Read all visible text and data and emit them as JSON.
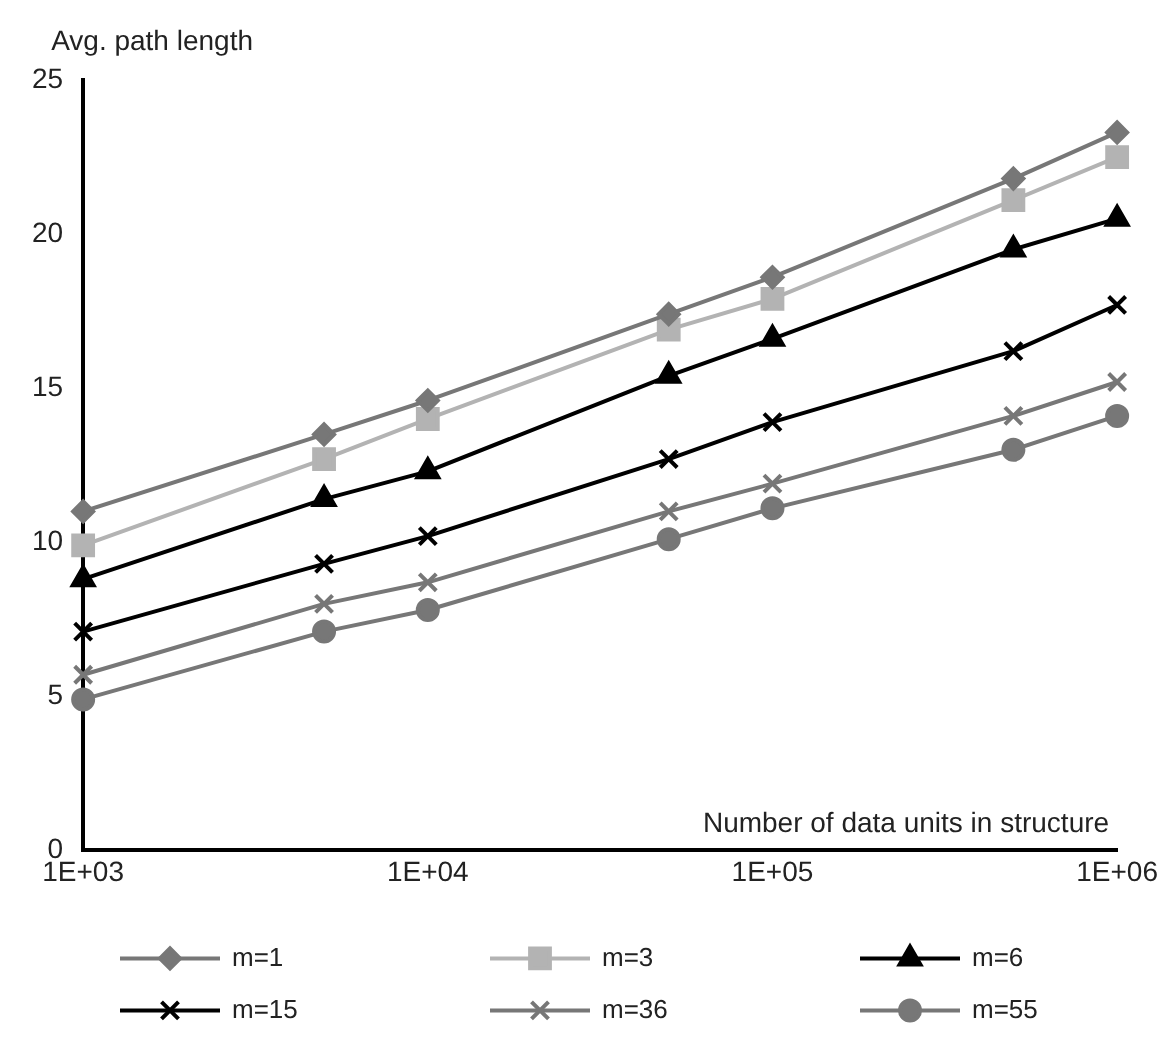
{
  "chart_data": {
    "type": "line",
    "xlabel": "Number of data units in structure",
    "ylabel": "Avg. path length",
    "x": [
      1000,
      5000,
      10000,
      50000,
      100000,
      500000,
      1000000
    ],
    "series": [
      {
        "name": "m=1",
        "color": "#777777",
        "marker": "diamond",
        "values": [
          11.0,
          13.5,
          14.6,
          17.4,
          18.6,
          21.8,
          23.3
        ]
      },
      {
        "name": "m=3",
        "color": "#b3b3b3",
        "marker": "square",
        "values": [
          9.9,
          12.7,
          14.0,
          16.9,
          17.9,
          21.1,
          22.5
        ]
      },
      {
        "name": "m=6",
        "color": "#000000",
        "marker": "triangle",
        "values": [
          8.8,
          11.4,
          12.3,
          15.4,
          16.6,
          19.5,
          20.5
        ]
      },
      {
        "name": "m=15",
        "color": "#000000",
        "marker": "cross",
        "values": [
          7.1,
          9.3,
          10.2,
          12.7,
          13.9,
          16.2,
          17.7
        ]
      },
      {
        "name": "m=36",
        "color": "#777777",
        "marker": "cross",
        "values": [
          5.7,
          8.0,
          8.7,
          11.0,
          11.9,
          14.1,
          15.2
        ]
      },
      {
        "name": "m=55",
        "color": "#777777",
        "marker": "circle",
        "values": [
          4.9,
          7.1,
          7.8,
          10.1,
          11.1,
          13.0,
          14.1
        ]
      }
    ],
    "log": "x",
    "xlim": [
      1000,
      1000000
    ],
    "xticks": [
      {
        "value": 1000,
        "label": "1E+03"
      },
      {
        "value": 10000,
        "label": "1E+04"
      },
      {
        "value": 100000,
        "label": "1E+05"
      },
      {
        "value": 1000000,
        "label": "1E+06"
      }
    ],
    "ylim": [
      0,
      25
    ],
    "yticks": [
      0,
      5,
      10,
      15,
      20,
      25
    ],
    "grid": false,
    "legend": "bottom",
    "line_style": "solid"
  }
}
